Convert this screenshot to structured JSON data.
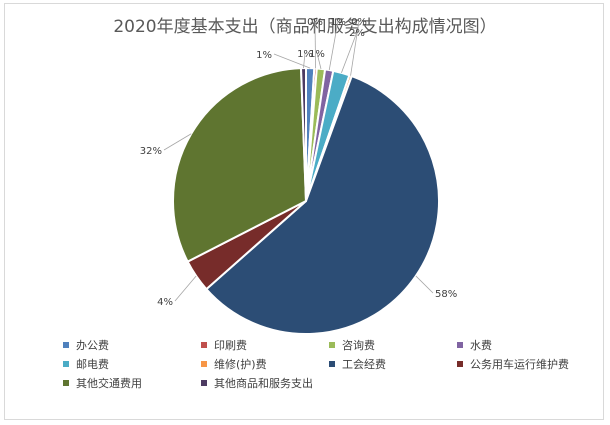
{
  "chart_data": {
    "type": "pie",
    "title": "2020年度基本支出（商品和服务支出构成情况图）",
    "slices": [
      {
        "name": "办公费",
        "value": 1,
        "label": "1%",
        "color": "#4f81bd"
      },
      {
        "name": "印刷费",
        "value": 0.3,
        "label": "0%",
        "color": "#c0504d"
      },
      {
        "name": "咨询费",
        "value": 1,
        "label": "1%",
        "color": "#9bbb59"
      },
      {
        "name": "水费",
        "value": 1,
        "label": "1%",
        "color": "#8064a2"
      },
      {
        "name": "邮电费",
        "value": 2,
        "label": "2%",
        "color": "#4bacc6"
      },
      {
        "name": "维修(护)费",
        "value": 0.3,
        "label": "0%",
        "color": "#f79646"
      },
      {
        "name": "工会经费",
        "value": 58,
        "label": "58%",
        "color": "#2c4d75"
      },
      {
        "name": "公务用车运行维护费",
        "value": 4,
        "label": "4%",
        "color": "#772c2a"
      },
      {
        "name": "其他交通费用",
        "value": 32,
        "label": "32%",
        "color": "#5f7530"
      },
      {
        "name": "其他商品和服务支出",
        "value": 0.6,
        "label": "1%",
        "color": "#4d3b62"
      }
    ],
    "legend_position": "bottom"
  }
}
